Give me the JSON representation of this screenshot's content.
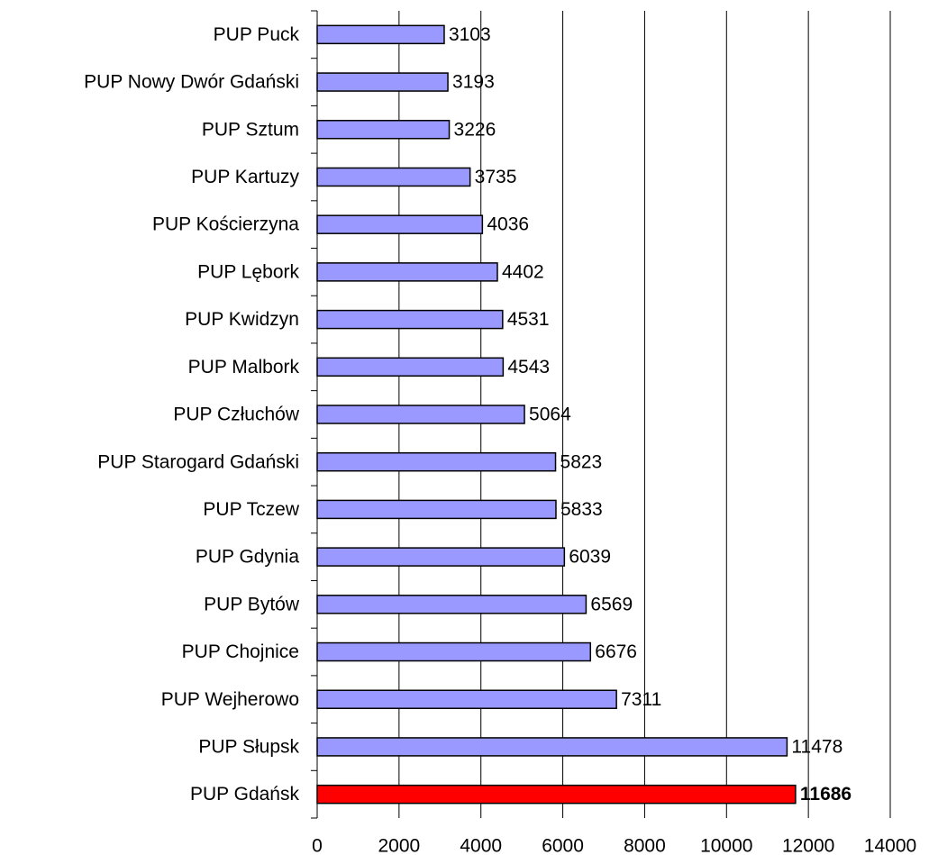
{
  "chart_data": {
    "type": "barh",
    "categories": [
      "PUP Puck",
      "PUP Nowy Dwór Gdański",
      "PUP Sztum",
      "PUP Kartuzy",
      "PUP Kościerzyna",
      "PUP Lębork",
      "PUP Kwidzyn",
      "PUP Malbork",
      "PUP Człuchów",
      "PUP Starogard Gdański",
      "PUP Tczew",
      "PUP Gdynia",
      "PUP Bytów",
      "PUP Chojnice",
      "PUP Wejherowo",
      "PUP Słupsk",
      "PUP Gdańsk"
    ],
    "values": [
      3103,
      3193,
      3226,
      3735,
      4036,
      4402,
      4531,
      4543,
      5064,
      5823,
      5833,
      6039,
      6569,
      6676,
      7311,
      11478,
      11686
    ],
    "color": "#9999ff",
    "colors": [
      "#9999ff",
      "#9999ff",
      "#9999ff",
      "#9999ff",
      "#9999ff",
      "#9999ff",
      "#9999ff",
      "#9999ff",
      "#9999ff",
      "#9999ff",
      "#9999ff",
      "#9999ff",
      "#9999ff",
      "#9999ff",
      "#9999ff",
      "#9999ff",
      "#ff0000"
    ],
    "xlim": [
      0,
      14000
    ],
    "xticks": [
      0,
      2000,
      4000,
      6000,
      8000,
      10000,
      12000,
      14000
    ],
    "grid": true
  }
}
